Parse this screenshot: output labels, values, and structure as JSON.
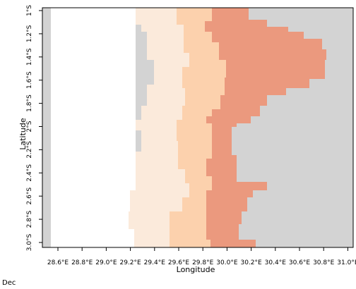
{
  "map": {
    "x_axis_title": "Longitude",
    "y_axis_title": "Latitude",
    "month_label": "Dec",
    "x_ticks": [
      "28.6°E",
      "28.8°E",
      "29.0°E",
      "29.2°E",
      "29.4°E",
      "29.6°E",
      "29.8°E",
      "30.0°E",
      "30.2°E",
      "30.4°E",
      "30.6°E",
      "30.8°E",
      "31.0°E"
    ],
    "y_ticks": [
      "1°S",
      "1.2°S",
      "1.4°S",
      "1.6°S",
      "1.8°S",
      "2°S",
      "2.2°S",
      "2.4°S",
      "2.6°S",
      "2.8°S",
      "3.0°S"
    ],
    "colors": {
      "land": "#d3d3d3",
      "band1": "#fbeadb",
      "band2": "#fcd1ad",
      "band3": "#eb997e"
    }
  }
}
